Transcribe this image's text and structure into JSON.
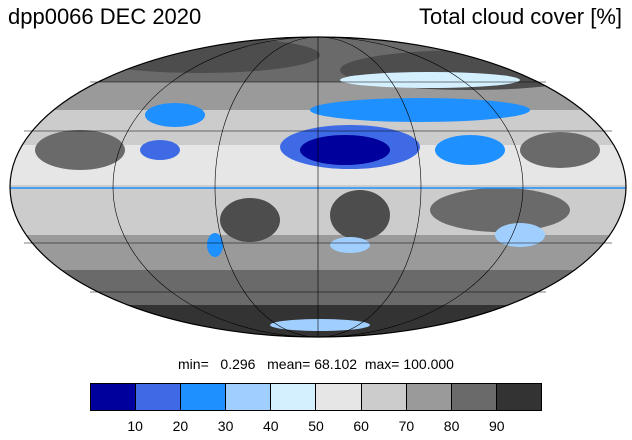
{
  "header": {
    "left_title": "dpp0066 DEC 2020",
    "right_title": "Total cloud cover [%]"
  },
  "stats": {
    "min_label": "min=",
    "min_value": "0.296",
    "mean_label": "mean=",
    "mean_value": "68.102",
    "max_label": "max=",
    "max_value": "100.000"
  },
  "legend": {
    "colors": [
      "#00009c",
      "#3f6ae6",
      "#1e90ff",
      "#a0cfff",
      "#d4f0ff",
      "#e6e6e6",
      "#cccccc",
      "#9a9a9a",
      "#6a6a6a",
      "#333333"
    ],
    "ticks": [
      "10",
      "20",
      "30",
      "40",
      "50",
      "60",
      "70",
      "80",
      "90"
    ]
  },
  "map": {
    "projection": "Mollweide",
    "ocean_base_color": "#8c8c8c"
  }
}
